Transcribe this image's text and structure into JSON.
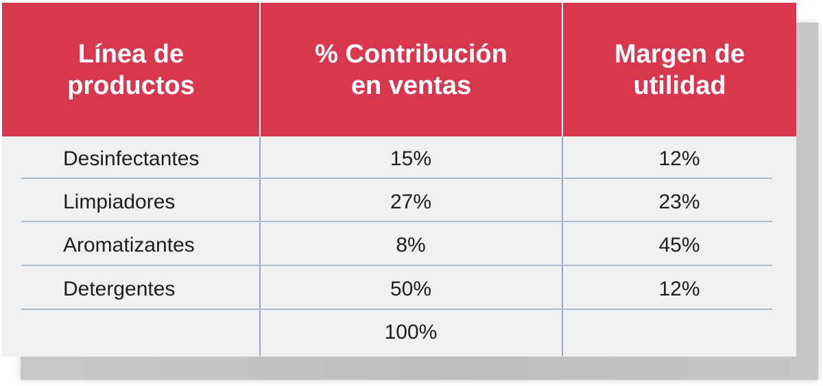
{
  "table": {
    "headers": {
      "col1": [
        "Línea de",
        "productos"
      ],
      "col2": [
        "% Contribución",
        "en ventas"
      ],
      "col3": [
        "Margen de",
        "utilidad"
      ]
    },
    "rows": [
      {
        "product": "Desinfectantes",
        "contribution": "15%",
        "margin": "12%"
      },
      {
        "product": "Limpiadores",
        "contribution": "27%",
        "margin": "23%"
      },
      {
        "product": "Aromatizantes",
        "contribution": "8%",
        "margin": "45%"
      },
      {
        "product": "Detergentes",
        "contribution": "50%",
        "margin": "12%"
      }
    ],
    "total": {
      "product": "",
      "contribution": "100%",
      "margin": ""
    }
  },
  "colors": {
    "header_background": "#d73850",
    "header_text": "#ffffff",
    "body_background": "#f0f0f0",
    "grid_line": "#aebbcb",
    "shadow": "#c4c4c4"
  }
}
